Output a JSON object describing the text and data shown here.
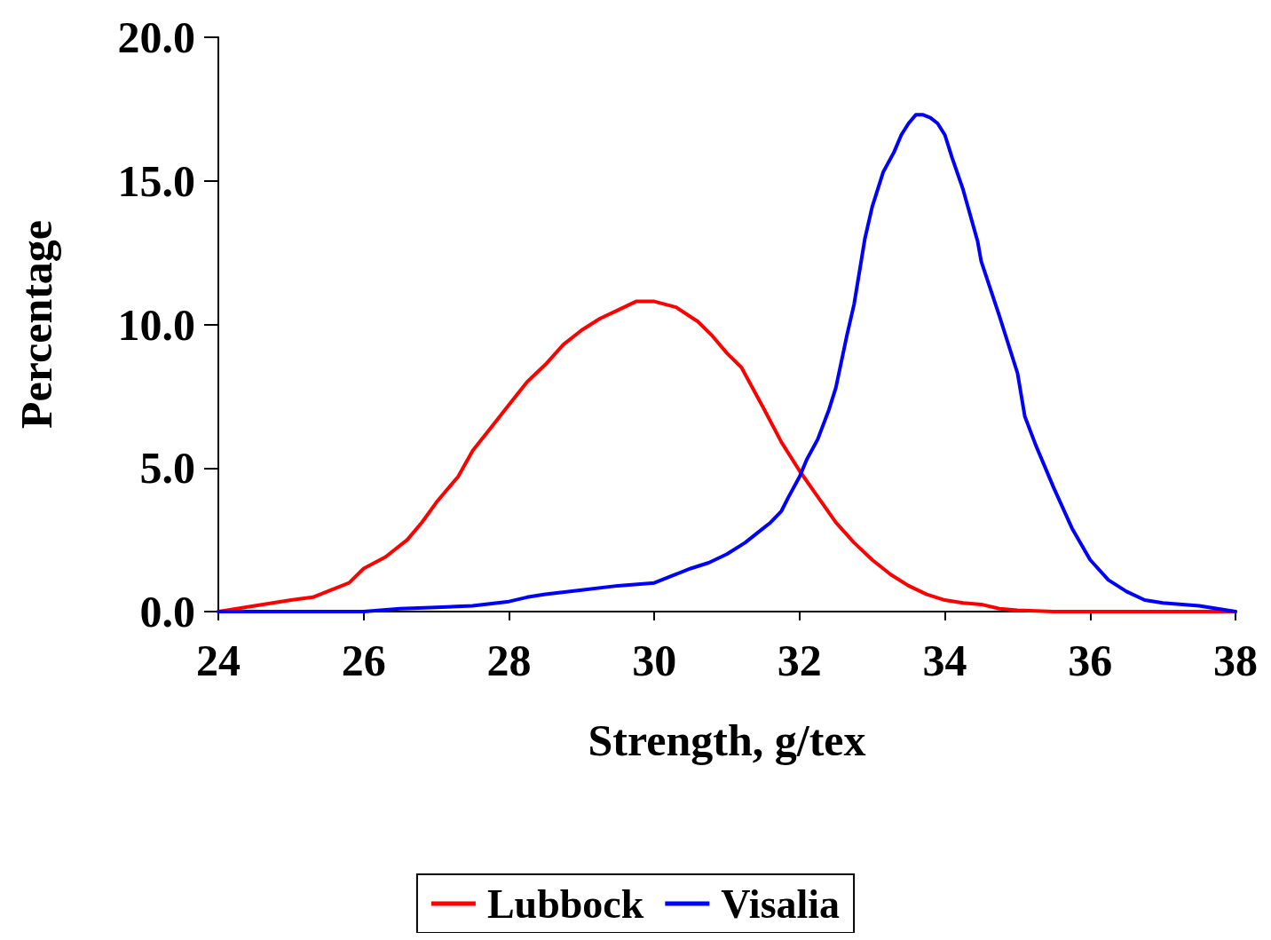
{
  "chart_data": {
    "type": "line",
    "xlabel": "Strength, g/tex",
    "ylabel": "Percentage",
    "xlim": [
      24,
      38
    ],
    "xticks": [
      24,
      26,
      28,
      30,
      32,
      34,
      36,
      38
    ],
    "ylim": [
      0,
      20
    ],
    "yticks": [
      {
        "value": 0,
        "label": "0.0"
      },
      {
        "value": 5,
        "label": "5.0"
      },
      {
        "value": 10,
        "label": "10.0"
      },
      {
        "value": 15,
        "label": "15.0"
      },
      {
        "value": 20,
        "label": "20.0"
      }
    ],
    "grid": false,
    "legend": "bottom",
    "marker": "none",
    "line_style": "solid",
    "series": [
      {
        "name": "Lubbock",
        "color": "#ff0000",
        "x": [
          24,
          24.5,
          25,
          25.3,
          25.5,
          25.8,
          26,
          26.3,
          26.6,
          26.8,
          27,
          27.3,
          27.5,
          27.75,
          28,
          28.25,
          28.5,
          28.75,
          29,
          29.25,
          29.5,
          29.75,
          30,
          30.3,
          30.6,
          30.8,
          31,
          31.2,
          31.5,
          31.75,
          32,
          32.25,
          32.5,
          32.75,
          33,
          33.25,
          33.5,
          33.75,
          34,
          34.25,
          34.5,
          34.75,
          35,
          35.5,
          36,
          37,
          38
        ],
        "values": [
          0,
          0.2,
          0.4,
          0.5,
          0.7,
          1.0,
          1.5,
          1.9,
          2.5,
          3.1,
          3.8,
          4.7,
          5.6,
          6.4,
          7.2,
          8.0,
          8.6,
          9.3,
          9.8,
          10.2,
          10.5,
          10.8,
          10.8,
          10.6,
          10.1,
          9.6,
          9.0,
          8.5,
          7.1,
          5.9,
          4.9,
          4.0,
          3.1,
          2.4,
          1.8,
          1.3,
          0.9,
          0.6,
          0.4,
          0.3,
          0.25,
          0.1,
          0.05,
          0,
          0,
          0,
          0
        ]
      },
      {
        "name": "Visalia",
        "color": "#0000ff",
        "x": [
          24,
          25,
          26,
          26.5,
          27,
          27.5,
          28,
          28.25,
          28.5,
          29,
          29.5,
          30,
          30.3,
          30.5,
          30.75,
          31,
          31.25,
          31.5,
          31.6,
          31.75,
          31.85,
          32,
          32.1,
          32.25,
          32.4,
          32.5,
          32.65,
          32.75,
          32.9,
          33,
          33.15,
          33.3,
          33.4,
          33.5,
          33.6,
          33.7,
          33.8,
          33.9,
          34,
          34.1,
          34.25,
          34.45,
          34.5,
          34.75,
          35,
          35.1,
          35.25,
          35.5,
          35.75,
          36,
          36.25,
          36.5,
          36.75,
          37,
          37.5,
          38
        ],
        "values": [
          0,
          0,
          0,
          0.1,
          0.15,
          0.2,
          0.35,
          0.5,
          0.6,
          0.75,
          0.9,
          1.0,
          1.3,
          1.5,
          1.7,
          2.0,
          2.4,
          2.9,
          3.1,
          3.5,
          4.0,
          4.7,
          5.3,
          6.0,
          7.0,
          7.8,
          9.6,
          10.7,
          13.0,
          14.1,
          15.3,
          16.0,
          16.6,
          17.0,
          17.3,
          17.3,
          17.2,
          17.0,
          16.6,
          15.8,
          14.7,
          12.9,
          12.2,
          10.3,
          8.3,
          6.8,
          5.8,
          4.3,
          2.9,
          1.8,
          1.1,
          0.7,
          0.4,
          0.3,
          0.2,
          0
        ]
      }
    ]
  }
}
